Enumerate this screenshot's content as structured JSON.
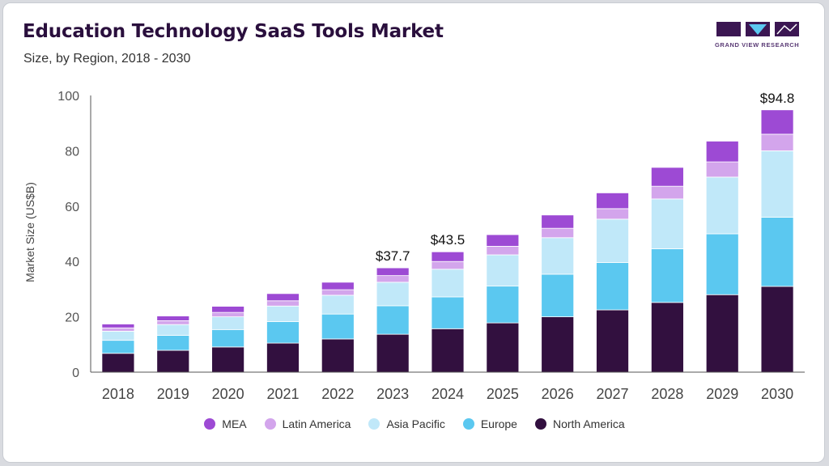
{
  "header": {
    "title": "Education Technology SaaS Tools Market",
    "subtitle": "Size, by Region, 2018 - 2030"
  },
  "logo": {
    "text": "GRAND VIEW RESEARCH"
  },
  "chart_data": {
    "type": "bar",
    "stacked": true,
    "categories": [
      "2018",
      "2019",
      "2020",
      "2021",
      "2022",
      "2023",
      "2024",
      "2025",
      "2026",
      "2027",
      "2028",
      "2029",
      "2030"
    ],
    "ylabel": "Market Size (US$B)",
    "ylim": [
      0,
      100
    ],
    "yticks": [
      0,
      20,
      40,
      60,
      80,
      100
    ],
    "grid": false,
    "legend_position": "bottom",
    "series": [
      {
        "name": "North America",
        "color": "#32103f",
        "values": [
          6.8,
          7.9,
          9.1,
          10.5,
          12.0,
          13.7,
          15.7,
          17.8,
          20.0,
          22.5,
          25.2,
          28.0,
          31.0
        ]
      },
      {
        "name": "Europe",
        "color": "#5bc8f0",
        "values": [
          4.7,
          5.4,
          6.3,
          7.8,
          9.0,
          10.3,
          11.5,
          13.3,
          15.4,
          17.1,
          19.4,
          22.0,
          25.0
        ]
      },
      {
        "name": "Asia Pacific",
        "color": "#c0e8f9",
        "values": [
          3.3,
          3.9,
          4.6,
          5.6,
          6.8,
          8.5,
          10.0,
          11.3,
          13.2,
          15.7,
          18.0,
          20.5,
          24.0
        ]
      },
      {
        "name": "Latin America",
        "color": "#d3a5ec",
        "values": [
          1.2,
          1.4,
          1.6,
          1.9,
          2.0,
          2.4,
          2.8,
          3.1,
          3.4,
          3.8,
          4.6,
          5.5,
          6.0
        ]
      },
      {
        "name": "MEA",
        "color": "#9d4ad4",
        "values": [
          1.4,
          1.7,
          2.2,
          2.6,
          2.7,
          2.8,
          3.5,
          4.2,
          4.8,
          5.7,
          6.8,
          7.5,
          8.8
        ]
      }
    ],
    "total_labels": [
      {
        "category": "2023",
        "text": "$37.7",
        "value": 37.7
      },
      {
        "category": "2024",
        "text": "$43.5",
        "value": 43.5
      },
      {
        "category": "2030",
        "text": "$94.8",
        "value": 94.8
      }
    ]
  }
}
